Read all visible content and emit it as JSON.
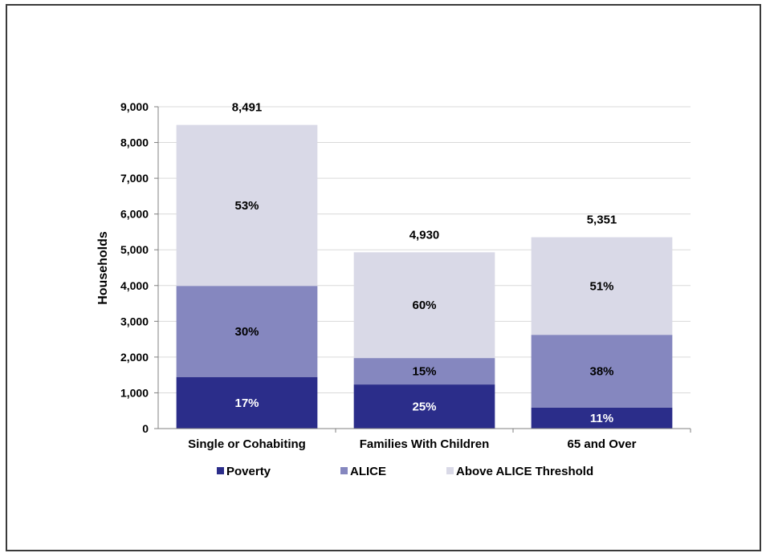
{
  "chart_data": {
    "type": "bar",
    "stacked": true,
    "categories": [
      "Single or Cohabiting",
      "Families With Children",
      "65 and Over"
    ],
    "totals": [
      8491,
      4930,
      5351
    ],
    "total_labels": [
      "8,491",
      "4,930",
      "5,351"
    ],
    "series": [
      {
        "name": "Poverty",
        "values": [
          1443,
          1233,
          589
        ],
        "labels": [
          "17%",
          "25%",
          "11%"
        ],
        "color": "#2b2d8a",
        "label_color": "#ffffff"
      },
      {
        "name": "ALICE",
        "values": [
          2547,
          740,
          2033
        ],
        "labels": [
          "30%",
          "15%",
          "38%"
        ],
        "color": "#8587bf",
        "label_color": "#000000"
      },
      {
        "name": "Above ALICE Threshold",
        "values": [
          4501,
          2957,
          2729
        ],
        "labels": [
          "53%",
          "60%",
          "51%"
        ],
        "color": "#d9d9e7",
        "label_color": "#000000"
      }
    ],
    "ylabel": "Households",
    "xlabel": "",
    "ylim": [
      0,
      9000
    ],
    "yticks": [
      0,
      1000,
      2000,
      3000,
      4000,
      5000,
      6000,
      7000,
      8000,
      9000
    ],
    "ytick_labels": [
      "0",
      "1,000",
      "2,000",
      "3,000",
      "4,000",
      "5,000",
      "6,000",
      "7,000",
      "8,000",
      "9,000"
    ],
    "grid": true,
    "legend_position": "bottom"
  }
}
